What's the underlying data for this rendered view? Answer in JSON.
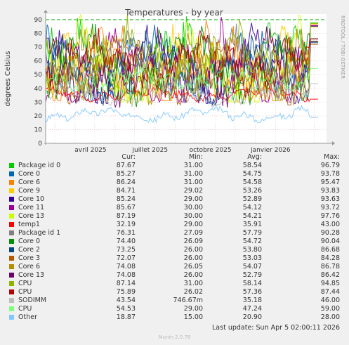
{
  "chart_data": {
    "type": "line",
    "title": "Temperatures - by year",
    "ylabel": "degrees Celsius",
    "side_label": "RRDTOOL / TOBI OETIKER",
    "ylim": [
      0,
      90
    ],
    "yticks": [
      "0",
      "10",
      "20",
      "30",
      "40",
      "50",
      "60",
      "70",
      "80",
      "90"
    ],
    "x_range": [
      "2025-02-15",
      "2026-04-20"
    ],
    "xticks": [
      {
        "label": "avril 2025",
        "date": "2025-04-01"
      },
      {
        "label": "juillet 2025",
        "date": "2025-07-01"
      },
      {
        "label": "octobre 2025",
        "date": "2025-10-01"
      },
      {
        "label": "janvier 2026",
        "date": "2026-01-01"
      }
    ],
    "warning_line": 90,
    "columns": [
      "Cur:",
      "Min:",
      "Avg:",
      "Max:"
    ],
    "series": [
      {
        "name": "Package id 0",
        "color": "#00cc00",
        "cur": "87.67",
        "min": "31.00",
        "avg": "58.54",
        "max": "96.79"
      },
      {
        "name": "Core 0",
        "color": "#0066b3",
        "cur": "85.27",
        "min": "31.00",
        "avg": "54.75",
        "max": "93.78"
      },
      {
        "name": "Core 6",
        "color": "#ff8000",
        "cur": "86.24",
        "min": "31.00",
        "avg": "54.58",
        "max": "95.47"
      },
      {
        "name": "Core 9",
        "color": "#ffcc00",
        "cur": "84.71",
        "min": "29.02",
        "avg": "53.26",
        "max": "93.83"
      },
      {
        "name": "Core 10",
        "color": "#330099",
        "cur": "85.24",
        "min": "29.00",
        "avg": "52.89",
        "max": "93.63"
      },
      {
        "name": "Core 11",
        "color": "#990099",
        "cur": "85.67",
        "min": "30.00",
        "avg": "54.12",
        "max": "93.72"
      },
      {
        "name": "Core 13",
        "color": "#ccff00",
        "cur": "87.19",
        "min": "30.00",
        "avg": "54.21",
        "max": "97.76"
      },
      {
        "name": "temp1",
        "color": "#ff0000",
        "cur": "32.19",
        "min": "29.00",
        "avg": "35.91",
        "max": "43.00"
      },
      {
        "name": "Package id 1",
        "color": "#808080",
        "cur": "76.31",
        "min": "27.09",
        "avg": "57.79",
        "max": "90.28"
      },
      {
        "name": "Core 0",
        "color": "#008f00",
        "cur": "74.40",
        "min": "26.09",
        "avg": "54.72",
        "max": "90.04"
      },
      {
        "name": "Core 2",
        "color": "#00487d",
        "cur": "73.25",
        "min": "26.00",
        "avg": "53.80",
        "max": "86.68"
      },
      {
        "name": "Core 3",
        "color": "#b35a00",
        "cur": "72.07",
        "min": "26.00",
        "avg": "53.03",
        "max": "84.28"
      },
      {
        "name": "Core 6",
        "color": "#b38f00",
        "cur": "74.08",
        "min": "26.05",
        "avg": "54.07",
        "max": "86.78"
      },
      {
        "name": "Core 13",
        "color": "#6b006b",
        "cur": "74.08",
        "min": "26.00",
        "avg": "52.79",
        "max": "86.42"
      },
      {
        "name": "CPU",
        "color": "#8fb300",
        "cur": "87.14",
        "min": "31.00",
        "avg": "58.14",
        "max": "94.85"
      },
      {
        "name": "CPU",
        "color": "#b30000",
        "cur": "75.89",
        "min": "26.02",
        "avg": "57.36",
        "max": "87.44"
      },
      {
        "name": "SODIMM",
        "color": "#bebebe",
        "cur": "43.54",
        "min": "746.67m",
        "avg": "35.18",
        "max": "46.00"
      },
      {
        "name": "CPU",
        "color": "#80ff80",
        "cur": "54.53",
        "min": "29.00",
        "avg": "47.24",
        "max": "59.00"
      },
      {
        "name": "Other",
        "color": "#80c9ff",
        "cur": "18.87",
        "min": "15.00",
        "avg": "20.90",
        "max": "28.00"
      }
    ]
  },
  "last_update": "Last update: Sun Apr  5 02:00:11 2026",
  "footer": "Munin 2.0.76"
}
